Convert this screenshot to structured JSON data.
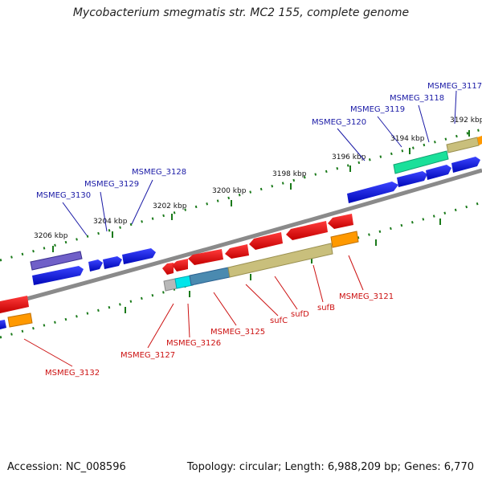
{
  "title": "Mycobacterium smegmatis str. MC2 155, complete genome",
  "footer": {
    "accession": "Accession: NC_008596",
    "summary": "Topology: circular; Length: 6,988,209 bp; Genes: 6,770"
  },
  "kbp_ticks": [
    "3206 kbp",
    "3204 kbp",
    "3202 kbp",
    "3200 kbp",
    "3198 kbp",
    "3196 kbp",
    "3194 kbp",
    "3192 kbp"
  ],
  "top_gene_labels": [
    "MSMEG_3130",
    "MSMEG_3129",
    "MSMEG_3128",
    "MSMEG_3120",
    "MSMEG_3119",
    "MSMEG_3118",
    "MSMEG_3117"
  ],
  "bottom_gene_labels": [
    "MSMEG_3132",
    "MSMEG_3127",
    "MSMEG_3126",
    "MSMEG_3125",
    "sufC",
    "sufD",
    "sufB",
    "MSMEG_3121"
  ],
  "colors": {
    "forward_label": "#1a1aa6",
    "reverse_label": "#cc1111",
    "blue_gene": "#0a12d6",
    "red_gene": "#e00000",
    "olive_gene": "#c9bf7c",
    "orange_gene": "#ff9900",
    "purple_gene": "#7060c8",
    "teal_gene": "#1ae09a",
    "cyan_gene": "#00e5ea",
    "steel_gene": "#4a8ab0",
    "tick_green": "#1a7a1a",
    "backbone": "#8a8a8a"
  }
}
